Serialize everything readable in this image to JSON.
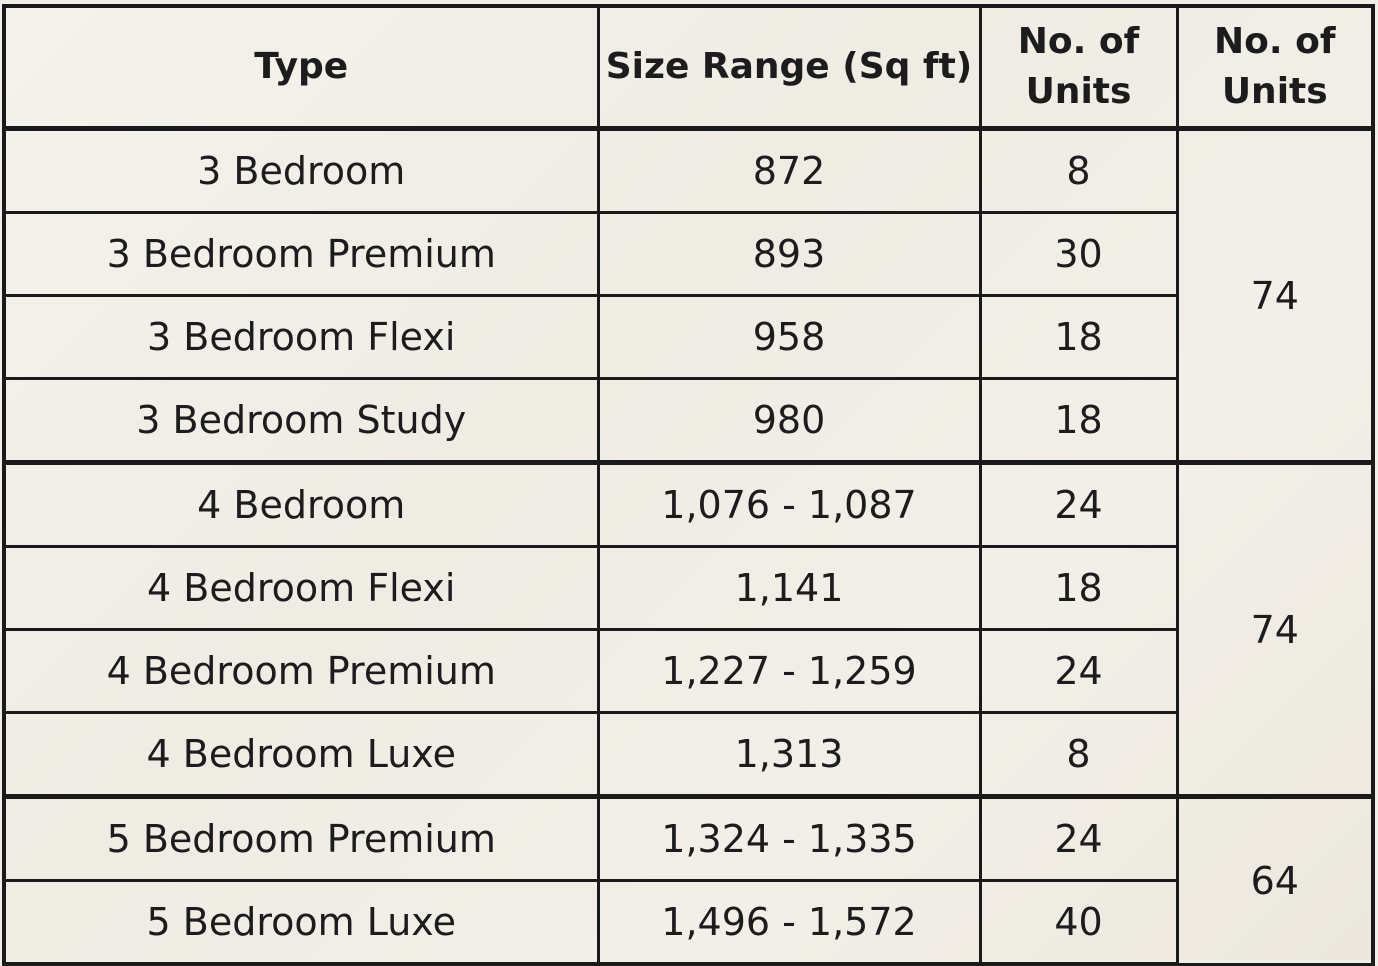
{
  "table": {
    "headers": {
      "type": "Type",
      "size": "Size Range (Sq ft)",
      "units": "No. of Units",
      "total": "No. of Units"
    },
    "groups": [
      {
        "total": "74",
        "rows": [
          {
            "type": "3 Bedroom",
            "size": "872",
            "units": "8"
          },
          {
            "type": "3 Bedroom Premium",
            "size": "893",
            "units": "30"
          },
          {
            "type": "3 Bedroom Flexi",
            "size": "958",
            "units": "18"
          },
          {
            "type": "3 Bedroom Study",
            "size": "980",
            "units": "18"
          }
        ]
      },
      {
        "total": "74",
        "rows": [
          {
            "type": "4 Bedroom",
            "size": "1,076 - 1,087",
            "units": "24"
          },
          {
            "type": "4 Bedroom Flexi",
            "size": "1,141",
            "units": "18"
          },
          {
            "type": "4 Bedroom Premium",
            "size": "1,227 - 1,259",
            "units": "24"
          },
          {
            "type": "4 Bedroom Luxe",
            "size": "1,313",
            "units": "8"
          }
        ]
      },
      {
        "total": "64",
        "rows": [
          {
            "type": "5 Bedroom Premium",
            "size": "1,324 - 1,335",
            "units": "24"
          },
          {
            "type": "5 Bedroom Luxe",
            "size": "1,496 - 1,572",
            "units": "40"
          }
        ]
      }
    ]
  }
}
